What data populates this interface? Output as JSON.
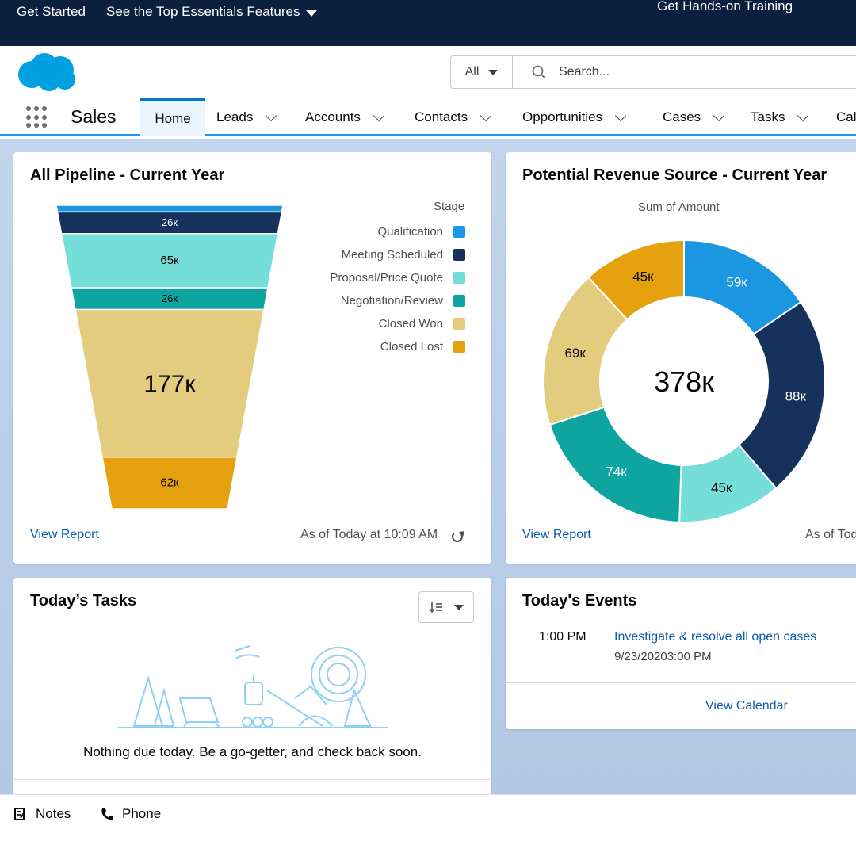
{
  "topbar": {
    "get_started": "Get Started",
    "top_features": "See the Top Essentials Features",
    "training": "Get Hands-on Training"
  },
  "search": {
    "scope": "All",
    "placeholder": "Search..."
  },
  "nav": {
    "app_name": "Sales",
    "tabs": [
      {
        "label": "Home"
      },
      {
        "label": "Leads"
      },
      {
        "label": "Accounts"
      },
      {
        "label": "Contacts"
      },
      {
        "label": "Opportunities"
      },
      {
        "label": "Cases"
      },
      {
        "label": "Tasks"
      },
      {
        "label": "Cal"
      }
    ]
  },
  "pipeline_card": {
    "title": "All Pipeline - Current Year",
    "legend_title": "Stage",
    "view_report": "View Report",
    "as_of": "As of Today at 10:09 AM"
  },
  "revenue_card": {
    "title": "Potential Revenue Source - Current Year",
    "subtitle": "Sum of Amount",
    "view_report": "View Report",
    "as_of": "As of Tod"
  },
  "chart_data": [
    {
      "type": "funnel",
      "title": "All Pipeline - Current Year",
      "legend_title": "Stage",
      "categories": [
        "Qualification",
        "Meeting Scheduled",
        "Proposal/Price Quote",
        "Negotiation/Review",
        "Closed Won",
        "Closed Lost"
      ],
      "values": [
        8,
        26,
        65,
        26,
        177,
        62
      ],
      "labels": [
        "",
        "26к",
        "65к",
        "26к",
        "177к",
        "62к"
      ],
      "colors": [
        "#1b96e0",
        "#16325c",
        "#76ded9",
        "#0ea5a0",
        "#e3cc7e",
        "#e5a00d"
      ]
    },
    {
      "type": "pie",
      "title": "Potential Revenue Source - Current Year",
      "subtitle": "Sum of Amount",
      "total_label": "378к",
      "values": [
        59,
        88,
        45,
        74,
        69,
        45
      ],
      "labels": [
        "59к",
        "88к",
        "45к",
        "74к",
        "69к",
        "45к"
      ],
      "colors": [
        "#1b96e0",
        "#16325c",
        "#76ded9",
        "#0ea5a0",
        "#e3cc7e",
        "#e5a00d"
      ]
    }
  ],
  "tasks_card": {
    "title": "Today’s Tasks",
    "empty_message": "Nothing due today. Be a go-getter, and check back soon."
  },
  "events_card": {
    "title": "Today's Events",
    "event_time": "1:00 PM",
    "event_title": "Investigate & resolve all open cases",
    "event_date": "9/23/20203:00 PM",
    "view_calendar": "View Calendar"
  },
  "utility": {
    "notes": "Notes",
    "phone": "Phone"
  }
}
